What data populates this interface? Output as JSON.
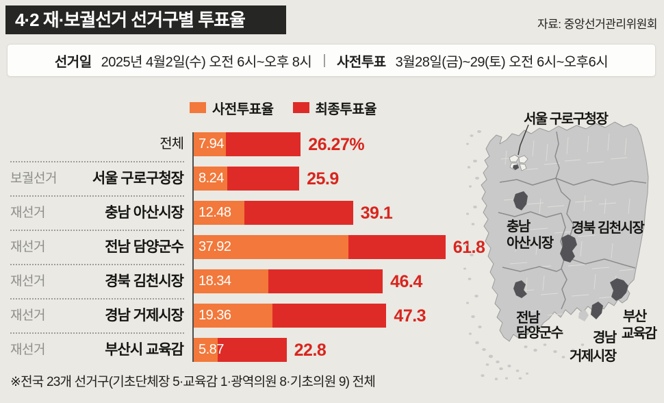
{
  "header": {
    "title": "4·2 재·보궐선거 선거구별 투표율",
    "source": "자료: 중앙선거관리위원회"
  },
  "info_bar": {
    "label_election_day": "선거일",
    "election_day": "2025년 4월2일(수) 오전 6시~오후 8시",
    "divider": "|",
    "label_early_voting": "사전투표",
    "early_voting": "3월28일(금)~29(토) 오전 6시~오후6시"
  },
  "colors": {
    "bg": "#EAE9E3",
    "header": "#262624",
    "early": "#F2783B",
    "final": "#DF2B27",
    "vlabel": "#D8251E",
    "land": "#C9C9C9",
    "dark": "#535357"
  },
  "chart_data": {
    "type": "bar",
    "orientation": "horizontal",
    "unit": "%",
    "xlim": [
      0,
      65
    ],
    "legend_position": "top",
    "series": [
      {
        "name": "사전투표율"
      },
      {
        "name": "최종투표율"
      }
    ],
    "rows": [
      {
        "category": "",
        "district": "전체",
        "early": 7.94,
        "final": 26.27,
        "early_label": "7.94",
        "final_label": "26.27%"
      },
      {
        "category": "보궐선거",
        "district": "서울 구로구청장",
        "early": 8.24,
        "final": 25.9,
        "early_label": "8.24",
        "final_label": "25.9"
      },
      {
        "category": "재선거",
        "district": "충남 아산시장",
        "early": 12.48,
        "final": 39.1,
        "early_label": "12.48",
        "final_label": "39.1"
      },
      {
        "category": "재선거",
        "district": "전남 담양군수",
        "early": 37.92,
        "final": 61.8,
        "early_label": "37.92",
        "final_label": "61.8"
      },
      {
        "category": "재선거",
        "district": "경북 김천시장",
        "early": 18.34,
        "final": 46.4,
        "early_label": "18.34",
        "final_label": "46.4"
      },
      {
        "category": "재선거",
        "district": "경남 거제시장",
        "early": 19.36,
        "final": 47.3,
        "early_label": "19.36",
        "final_label": "47.3"
      },
      {
        "category": "재선거",
        "district": "부산시 교육감",
        "early": 5.87,
        "final": 22.8,
        "early_label": "5.87",
        "final_label": "22.8"
      }
    ]
  },
  "map": {
    "labels": {
      "seoul": "서울 구로구청장",
      "chungnam_1": "충남",
      "chungnam_2": "아산시장",
      "gyeongbuk": "경북 김천시장",
      "jeonnam_1": "전남",
      "jeonnam_2": "담양군수",
      "gyeongnam_1": "경남",
      "gyeongnam_2": "거제시장",
      "busan_1": "부산",
      "busan_2": "교육감"
    }
  },
  "footnote": "※전국 23개 선거구(기초단체장 5·교육감 1·광역의원 8·기초의원 9) 전체"
}
